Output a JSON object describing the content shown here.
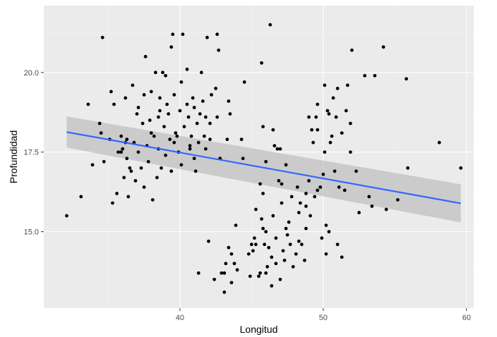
{
  "chart_data": {
    "type": "scatter",
    "title": "",
    "xlabel": "Longitud",
    "ylabel": "Profundidad",
    "xlim": [
      30.5,
      60.5
    ],
    "ylim": [
      12.6,
      22.1
    ],
    "x_ticks": [
      40,
      50,
      60
    ],
    "x_tick_labels": [
      "40",
      "50",
      "60"
    ],
    "y_ticks": [
      15,
      17.5,
      20
    ],
    "y_tick_labels": [
      "15.0",
      "17.5",
      "20.0"
    ],
    "grid": true,
    "legend": "none",
    "colors": {
      "panel_background": "#ebebeb",
      "grid_major": "#ffffff",
      "grid_minor": "#f4f4f4",
      "points": "#000000",
      "fit_line": "#3366ff",
      "confidence_band": "#bdbdbd"
    },
    "trend_line": {
      "method": "linear",
      "x": [
        32.1,
        59.6
      ],
      "y": [
        18.13,
        15.89
      ],
      "ci_lower": [
        17.64,
        15.29
      ],
      "ci_upper": [
        18.62,
        16.49
      ]
    },
    "points": [
      [
        32.1,
        15.5
      ],
      [
        33.1,
        16.1
      ],
      [
        33.6,
        19.0
      ],
      [
        33.9,
        17.1
      ],
      [
        34.4,
        18.4
      ],
      [
        34.5,
        18.1
      ],
      [
        34.6,
        21.1
      ],
      [
        34.7,
        17.2
      ],
      [
        35.1,
        17.9
      ],
      [
        35.2,
        19.4
      ],
      [
        35.3,
        15.9
      ],
      [
        35.4,
        19.0
      ],
      [
        35.6,
        16.2
      ],
      [
        35.7,
        17.5
      ],
      [
        35.9,
        17.5
      ],
      [
        35.9,
        18.0
      ],
      [
        36.1,
        16.7
      ],
      [
        36.2,
        17.8
      ],
      [
        36.3,
        17.9
      ],
      [
        36.2,
        19.2
      ],
      [
        36.3,
        17.3
      ],
      [
        36.4,
        16.1
      ],
      [
        36.5,
        17.0
      ],
      [
        36.6,
        16.9
      ],
      [
        36.7,
        19.6
      ],
      [
        36.8,
        17.8
      ],
      [
        36.9,
        16.6
      ],
      [
        37.0,
        18.7
      ],
      [
        37.1,
        17.5
      ],
      [
        37.1,
        18.9
      ],
      [
        37.3,
        17.0
      ],
      [
        37.4,
        18.4
      ],
      [
        37.5,
        19.3
      ],
      [
        37.5,
        16.4
      ],
      [
        37.6,
        20.5
      ],
      [
        37.7,
        17.7
      ],
      [
        37.8,
        17.2
      ],
      [
        37.9,
        18.5
      ],
      [
        38.0,
        18.1
      ],
      [
        38.0,
        19.4
      ],
      [
        38.1,
        16.0
      ],
      [
        38.2,
        18.0
      ],
      [
        38.3,
        20.0
      ],
      [
        38.4,
        16.7
      ],
      [
        38.5,
        18.6
      ],
      [
        38.5,
        17.6
      ],
      [
        38.6,
        19.2
      ],
      [
        38.7,
        17.0
      ],
      [
        38.8,
        20.0
      ],
      [
        38.9,
        18.3
      ],
      [
        39.0,
        17.4
      ],
      [
        39.1,
        19.0
      ],
      [
        39.2,
        18.7
      ],
      [
        39.3,
        17.9
      ],
      [
        39.4,
        20.8
      ],
      [
        39.4,
        16.9
      ],
      [
        39.5,
        21.2
      ],
      [
        39.6,
        17.8
      ],
      [
        39.6,
        19.3
      ],
      [
        39.7,
        18.1
      ],
      [
        39.8,
        18.0
      ],
      [
        39.9,
        17.5
      ],
      [
        40.0,
        18.8
      ],
      [
        40.1,
        17.1
      ],
      [
        40.1,
        19.7
      ],
      [
        40.2,
        21.2
      ],
      [
        40.3,
        18.3
      ],
      [
        40.5,
        19.0
      ],
      [
        40.5,
        20.1
      ],
      [
        40.6,
        18.6
      ],
      [
        40.7,
        17.6
      ],
      [
        40.8,
        18.0
      ],
      [
        40.9,
        19.2
      ],
      [
        41.0,
        18.9
      ],
      [
        41.0,
        17.3
      ],
      [
        41.1,
        16.9
      ],
      [
        41.2,
        18.4
      ],
      [
        41.3,
        13.7
      ],
      [
        41.3,
        17.8
      ],
      [
        41.4,
        18.7
      ],
      [
        41.5,
        20.0
      ],
      [
        41.6,
        19.1
      ],
      [
        41.7,
        18.0
      ],
      [
        41.8,
        18.6
      ],
      [
        41.8,
        17.6
      ],
      [
        41.9,
        21.1
      ],
      [
        42.0,
        14.7
      ],
      [
        42.1,
        18.4
      ],
      [
        42.1,
        17.9
      ],
      [
        42.2,
        19.3
      ],
      [
        42.4,
        13.5
      ],
      [
        42.5,
        19.5
      ],
      [
        42.6,
        18.6
      ],
      [
        42.6,
        21.2
      ],
      [
        42.7,
        20.7
      ],
      [
        42.8,
        17.3
      ],
      [
        42.9,
        13.7
      ],
      [
        43.1,
        13.7
      ],
      [
        43.1,
        13.1
      ],
      [
        43.2,
        14.0
      ],
      [
        43.3,
        17.9
      ],
      [
        43.4,
        19.1
      ],
      [
        43.4,
        14.5
      ],
      [
        43.5,
        18.7
      ],
      [
        43.6,
        13.4
      ],
      [
        43.6,
        14.3
      ],
      [
        43.8,
        14.0
      ],
      [
        43.9,
        15.2
      ],
      [
        44.0,
        13.8
      ],
      [
        44.3,
        17.9
      ],
      [
        44.5,
        19.7
      ],
      [
        44.8,
        14.3
      ],
      [
        44.9,
        13.6
      ],
      [
        45.0,
        14.6
      ],
      [
        45.1,
        14.4
      ],
      [
        45.2,
        14.8
      ],
      [
        45.3,
        14.6
      ],
      [
        45.3,
        15.7
      ],
      [
        45.5,
        13.6
      ],
      [
        45.6,
        13.7
      ],
      [
        45.6,
        16.5
      ],
      [
        45.7,
        15.4
      ],
      [
        45.8,
        16.2
      ],
      [
        45.8,
        18.3
      ],
      [
        45.9,
        14.6
      ],
      [
        46.0,
        13.7
      ],
      [
        46.0,
        15.0
      ],
      [
        46.0,
        17.2
      ],
      [
        46.1,
        13.9
      ],
      [
        46.2,
        14.5
      ],
      [
        46.3,
        21.5
      ],
      [
        46.4,
        13.3
      ],
      [
        46.5,
        15.5
      ],
      [
        46.5,
        18.2
      ],
      [
        46.6,
        17.7
      ],
      [
        46.7,
        14.8
      ],
      [
        46.8,
        17.6
      ],
      [
        46.9,
        16.6
      ],
      [
        47.0,
        13.5
      ],
      [
        47.1,
        15.9
      ],
      [
        47.1,
        16.5
      ],
      [
        47.2,
        14.4
      ],
      [
        47.3,
        14.1
      ],
      [
        47.4,
        17.1
      ],
      [
        47.5,
        14.9
      ],
      [
        47.6,
        15.3
      ],
      [
        47.7,
        14.6
      ],
      [
        47.8,
        16.1
      ],
      [
        47.9,
        13.9
      ],
      [
        48.1,
        14.3
      ],
      [
        48.2,
        16.4
      ],
      [
        48.3,
        15.6
      ],
      [
        48.4,
        15.9
      ],
      [
        48.5,
        14.6
      ],
      [
        48.7,
        14.1
      ],
      [
        48.8,
        15.1
      ],
      [
        48.8,
        16.2
      ],
      [
        49.0,
        16.6
      ],
      [
        49.1,
        15.5
      ],
      [
        49.2,
        18.2
      ],
      [
        49.3,
        17.8
      ],
      [
        49.4,
        16.1
      ],
      [
        49.5,
        18.6
      ],
      [
        49.6,
        19.0
      ],
      [
        49.6,
        18.2
      ],
      [
        49.8,
        16.4
      ],
      [
        49.9,
        14.8
      ],
      [
        50.0,
        16.8
      ],
      [
        50.1,
        17.5
      ],
      [
        50.2,
        14.3
      ],
      [
        50.3,
        18.8
      ],
      [
        50.4,
        15.0
      ],
      [
        50.5,
        17.8
      ],
      [
        50.6,
        18.0
      ],
      [
        50.7,
        19.2
      ],
      [
        50.8,
        16.9
      ],
      [
        50.9,
        18.6
      ],
      [
        51.0,
        14.6
      ],
      [
        51.0,
        19.5
      ],
      [
        51.1,
        16.4
      ],
      [
        51.3,
        14.2
      ],
      [
        51.3,
        18.1
      ],
      [
        51.5,
        16.3
      ],
      [
        51.7,
        19.6
      ],
      [
        51.9,
        18.4
      ],
      [
        52.0,
        20.7
      ],
      [
        52.3,
        16.9
      ],
      [
        52.5,
        15.6
      ],
      [
        52.9,
        19.9
      ],
      [
        53.2,
        16.1
      ],
      [
        53.4,
        15.8
      ],
      [
        53.6,
        19.9
      ],
      [
        54.2,
        20.8
      ],
      [
        54.4,
        15.7
      ],
      [
        55.2,
        16.0
      ],
      [
        55.8,
        19.8
      ],
      [
        55.9,
        17.0
      ],
      [
        58.1,
        17.8
      ],
      [
        59.6,
        17.0
      ],
      [
        36.0,
        17.6
      ],
      [
        38.6,
        18.8
      ],
      [
        39.0,
        19.9
      ],
      [
        44.4,
        17.3
      ],
      [
        45.7,
        20.3
      ],
      [
        47.4,
        15.1
      ],
      [
        48.8,
        15.8
      ],
      [
        49.0,
        18.6
      ],
      [
        50.4,
        18.7
      ],
      [
        51.9,
        17.5
      ],
      [
        40.7,
        17.7
      ],
      [
        42.8,
        17.3
      ],
      [
        46.7,
        14.0
      ],
      [
        48.3,
        14.7
      ],
      [
        50.2,
        15.2
      ],
      [
        45.8,
        15.1
      ],
      [
        47.0,
        17.6
      ],
      [
        49.6,
        16.3
      ],
      [
        51.6,
        18.8
      ],
      [
        50.1,
        19.6
      ],
      [
        46.4,
        14.2
      ]
    ]
  }
}
